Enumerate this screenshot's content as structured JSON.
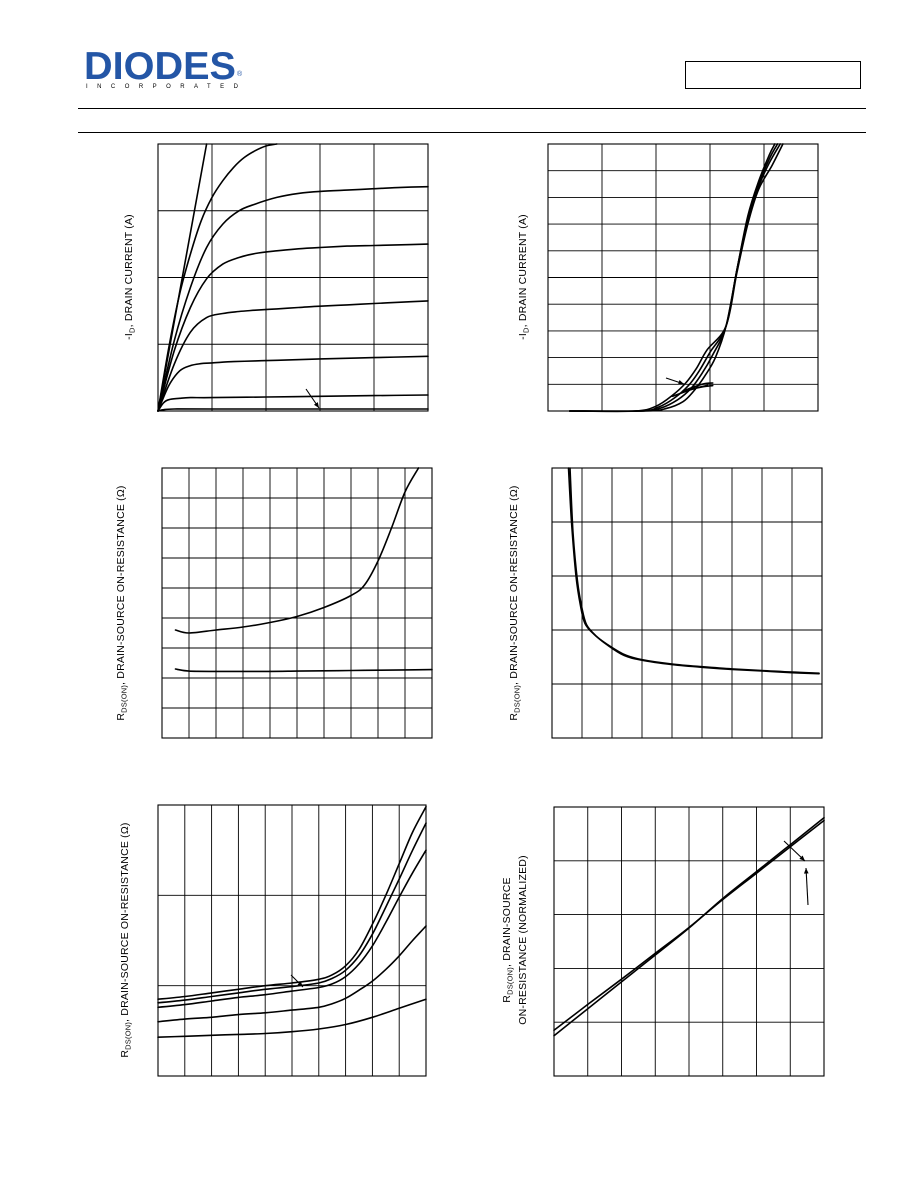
{
  "header": {
    "logo_text": "DIODES",
    "logo_subtext": "INCORPORATED",
    "logo_mark": "®",
    "part_number": ""
  },
  "charts": [
    {
      "id": "c1",
      "ylabel_parts": [
        "-I",
        "D",
        ", DRAIN CURRENT (A)"
      ]
    },
    {
      "id": "c2",
      "ylabel_parts": [
        "-I",
        "D",
        ", DRAIN CURRENT (A)"
      ]
    },
    {
      "id": "c3",
      "ylabel_parts": [
        "R",
        "DS(ON)",
        ", DRAIN-SOURCE ON-RESISTANCE (Ω)"
      ]
    },
    {
      "id": "c4",
      "ylabel_parts": [
        "R",
        "DS(ON)",
        ", DRAIN-SOURCE ON-RESISTANCE (Ω)"
      ]
    },
    {
      "id": "c5",
      "ylabel_parts": [
        "R",
        "DS(ON)",
        ", DRAIN-SOURCE ON-RESISTANCE (Ω)"
      ]
    },
    {
      "id": "c6",
      "ylabel_lines": [
        [
          "R",
          "DS(ON)",
          ", DRAIN-SOURCE"
        ],
        [
          "ON-RESISTANCE (NORMALIZED)"
        ]
      ]
    }
  ],
  "chart_data": [
    {
      "type": "line",
      "title": "",
      "xlabel": "",
      "ylabel": "-ID, DRAIN CURRENT (A)",
      "xlim": [
        0,
        5
      ],
      "ylim": [
        0,
        4
      ],
      "grid": true,
      "series": [
        {
          "x": [
            0,
            0.9
          ],
          "y": [
            0,
            4.0
          ]
        },
        {
          "x": [
            0,
            0.2,
            0.4,
            0.6,
            0.8,
            1.0,
            1.2,
            1.4,
            1.6,
            1.8,
            2.0,
            2.2
          ],
          "y": [
            0,
            0.95,
            1.75,
            2.35,
            2.85,
            3.2,
            3.45,
            3.65,
            3.8,
            3.9,
            3.97,
            4.0
          ]
        },
        {
          "x": [
            0,
            0.3,
            0.6,
            0.9,
            1.2,
            1.5,
            1.8,
            2.2,
            2.6,
            3.0,
            3.5,
            4.0,
            4.5,
            5.0
          ],
          "y": [
            0,
            1.05,
            1.85,
            2.45,
            2.8,
            3.0,
            3.1,
            3.2,
            3.26,
            3.29,
            3.31,
            3.33,
            3.35,
            3.36
          ]
        },
        {
          "x": [
            0,
            0.3,
            0.6,
            0.9,
            1.2,
            1.5,
            1.8,
            2.2,
            2.6,
            3.0,
            3.5,
            4.0,
            4.5,
            5.0
          ],
          "y": [
            0,
            0.9,
            1.55,
            1.98,
            2.2,
            2.3,
            2.36,
            2.4,
            2.43,
            2.45,
            2.47,
            2.48,
            2.49,
            2.5
          ]
        },
        {
          "x": [
            0,
            0.3,
            0.6,
            0.9,
            1.2,
            1.5,
            1.8,
            2.2,
            2.6,
            3.0,
            3.5,
            4.0,
            4.5,
            5.0
          ],
          "y": [
            0,
            0.7,
            1.18,
            1.4,
            1.46,
            1.49,
            1.51,
            1.53,
            1.55,
            1.57,
            1.59,
            1.61,
            1.63,
            1.65
          ]
        },
        {
          "x": [
            0,
            0.2,
            0.4,
            0.6,
            0.8,
            1.0,
            1.4,
            1.8,
            2.2,
            3.0,
            4.0,
            5.0
          ],
          "y": [
            0,
            0.38,
            0.6,
            0.68,
            0.71,
            0.72,
            0.74,
            0.75,
            0.76,
            0.78,
            0.8,
            0.82
          ]
        },
        {
          "x": [
            0,
            0.1,
            0.2,
            0.4,
            0.6,
            1.0,
            2.0,
            3.0,
            4.0,
            5.0
          ],
          "y": [
            0,
            0.12,
            0.17,
            0.19,
            0.2,
            0.2,
            0.21,
            0.22,
            0.23,
            0.24
          ]
        },
        {
          "x": [
            0,
            0.1,
            0.3,
            1.0,
            3.0,
            5.0
          ],
          "y": [
            0,
            0.02,
            0.03,
            0.03,
            0.03,
            0.03
          ]
        }
      ]
    },
    {
      "type": "line",
      "title": "",
      "xlabel": "",
      "ylabel": "-ID, DRAIN CURRENT (A)",
      "xlim": [
        0,
        5
      ],
      "ylim": [
        0,
        10
      ],
      "grid": true,
      "series": [
        {
          "x": [
            0.4,
            1.8,
            2.2,
            2.5,
            2.7,
            2.9,
            3.1,
            3.3,
            3.5,
            3.7,
            3.9,
            4.1,
            4.2
          ],
          "y": [
            0,
            0,
            0.1,
            0.35,
            0.75,
            1.3,
            2.0,
            3.2,
            5.3,
            7.3,
            8.6,
            9.6,
            10
          ]
        },
        {
          "x": [
            0.4,
            1.7,
            2.1,
            2.4,
            2.65,
            2.85,
            3.05,
            3.3,
            3.5,
            3.7,
            3.9,
            4.1,
            4.25
          ],
          "y": [
            0,
            0,
            0.12,
            0.42,
            0.85,
            1.4,
            2.1,
            3.2,
            5.3,
            7.2,
            8.5,
            9.45,
            10
          ]
        },
        {
          "x": [
            0.4,
            1.7,
            2.05,
            2.35,
            2.6,
            2.8,
            3.0,
            3.3,
            3.5,
            3.7,
            3.9,
            4.1,
            4.3
          ],
          "y": [
            0,
            0,
            0.15,
            0.5,
            0.95,
            1.5,
            2.2,
            3.2,
            5.3,
            7.1,
            8.4,
            9.3,
            10
          ]
        },
        {
          "x": [
            0.4,
            1.6,
            2.0,
            2.3,
            2.55,
            2.75,
            2.95,
            3.3,
            3.5,
            3.7,
            3.9,
            4.15,
            4.35
          ],
          "y": [
            0,
            0,
            0.18,
            0.58,
            1.05,
            1.6,
            2.3,
            3.2,
            5.2,
            7.0,
            8.3,
            9.2,
            10
          ]
        },
        {
          "x": [
            2.3,
            2.65,
            2.85,
            3.05
          ],
          "y": [
            0.55,
            0.8,
            0.9,
            0.95
          ]
        },
        {
          "x": [
            2.5,
            2.85,
            3.05
          ],
          "y": [
            0.75,
            1.0,
            1.05
          ]
        }
      ]
    },
    {
      "type": "line",
      "title": "",
      "xlabel": "",
      "ylabel": "RDS(ON), DRAIN-SOURCE ON-RESISTANCE (Ω)",
      "xlim": [
        0,
        10
      ],
      "ylim": [
        0,
        9
      ],
      "grid": true,
      "series": [
        {
          "x": [
            0.5,
            1,
            2,
            3,
            4,
            5,
            6,
            7,
            7.5,
            8,
            8.5,
            9,
            9.5
          ],
          "y": [
            3.6,
            3.5,
            3.6,
            3.7,
            3.85,
            4.05,
            4.35,
            4.75,
            5.1,
            5.9,
            7.0,
            8.2,
            9.0
          ]
        },
        {
          "x": [
            0.5,
            1,
            2,
            3,
            4,
            5,
            6,
            7,
            8,
            9,
            10
          ],
          "y": [
            2.3,
            2.23,
            2.22,
            2.22,
            2.22,
            2.23,
            2.24,
            2.25,
            2.26,
            2.27,
            2.28
          ]
        }
      ]
    },
    {
      "type": "line",
      "title": "",
      "xlabel": "",
      "ylabel": "RDS(ON), DRAIN-SOURCE ON-RESISTANCE (Ω)",
      "xlim": [
        0,
        9
      ],
      "ylim": [
        0,
        5
      ],
      "grid": true,
      "series": [
        {
          "x": [
            0.55,
            0.65,
            0.8,
            0.95,
            1.1,
            1.4,
            1.8,
            2.4,
            3.0,
            4.0,
            5.0,
            6.0,
            7.0,
            8.0,
            8.9
          ],
          "y": [
            5.0,
            4.0,
            3.0,
            2.45,
            2.12,
            1.92,
            1.75,
            1.55,
            1.45,
            1.37,
            1.32,
            1.28,
            1.25,
            1.22,
            1.2
          ]
        },
        {
          "x": [
            0.6,
            0.7,
            0.85,
            1.0,
            1.15,
            1.45,
            1.85,
            2.4,
            3.0,
            4.0,
            5.0,
            6.0,
            7.0,
            8.0,
            8.9
          ],
          "y": [
            5.0,
            3.8,
            2.9,
            2.4,
            2.1,
            1.9,
            1.72,
            1.53,
            1.44,
            1.36,
            1.31,
            1.27,
            1.24,
            1.21,
            1.19
          ]
        }
      ]
    },
    {
      "type": "line",
      "title": "",
      "xlabel": "",
      "ylabel": "RDS(ON), DRAIN-SOURCE ON-RESISTANCE (Ω)",
      "xlim": [
        0,
        10
      ],
      "ylim": [
        0,
        3
      ],
      "grid": true,
      "series": [
        {
          "x": [
            0,
            1,
            2,
            3,
            4,
            5,
            6,
            6.5,
            7,
            7.5,
            8,
            8.5,
            9,
            9.5,
            10
          ],
          "y": [
            0.85,
            0.88,
            0.92,
            0.96,
            1.0,
            1.03,
            1.07,
            1.12,
            1.22,
            1.4,
            1.68,
            2.0,
            2.35,
            2.7,
            2.98
          ]
        },
        {
          "x": [
            0,
            1,
            2,
            3,
            4,
            5,
            6,
            6.5,
            7,
            7.5,
            8,
            8.5,
            9,
            9.5,
            10
          ],
          "y": [
            0.81,
            0.84,
            0.88,
            0.92,
            0.96,
            0.99,
            1.03,
            1.08,
            1.17,
            1.33,
            1.57,
            1.87,
            2.18,
            2.5,
            2.8
          ]
        },
        {
          "x": [
            0,
            1,
            2,
            3,
            4,
            5,
            6,
            6.5,
            7,
            7.5,
            8,
            8.5,
            9,
            9.5,
            10
          ],
          "y": [
            0.76,
            0.79,
            0.83,
            0.87,
            0.9,
            0.94,
            0.98,
            1.02,
            1.1,
            1.24,
            1.44,
            1.7,
            1.98,
            2.25,
            2.5
          ]
        },
        {
          "x": [
            0,
            1,
            2,
            3,
            4,
            5,
            6,
            6.5,
            7,
            7.5,
            8,
            8.5,
            9,
            9.5,
            10
          ],
          "y": [
            0.6,
            0.63,
            0.65,
            0.68,
            0.7,
            0.73,
            0.76,
            0.8,
            0.86,
            0.95,
            1.05,
            1.18,
            1.33,
            1.5,
            1.66
          ]
        },
        {
          "x": [
            0,
            1,
            2,
            3,
            4,
            5,
            6,
            7,
            8,
            9,
            10
          ],
          "y": [
            0.43,
            0.44,
            0.45,
            0.46,
            0.47,
            0.49,
            0.52,
            0.57,
            0.65,
            0.75,
            0.85
          ]
        }
      ]
    },
    {
      "type": "line",
      "title": "",
      "xlabel": "",
      "ylabel": "RDS(ON), DRAIN-SOURCE ON-RESISTANCE (NORMALIZED)",
      "xlim": [
        0,
        8
      ],
      "ylim": [
        0,
        5
      ],
      "grid": true,
      "series": [
        {
          "x": [
            0,
            1,
            2,
            3,
            4,
            5,
            6,
            7,
            8
          ],
          "y": [
            0.75,
            1.25,
            1.75,
            2.25,
            2.75,
            3.3,
            3.8,
            4.3,
            4.8
          ]
        },
        {
          "x": [
            0,
            1,
            2,
            3,
            4,
            5,
            6,
            7,
            8
          ],
          "y": [
            0.85,
            1.33,
            1.8,
            2.28,
            2.76,
            3.28,
            3.77,
            4.26,
            4.75
          ]
        }
      ]
    }
  ]
}
